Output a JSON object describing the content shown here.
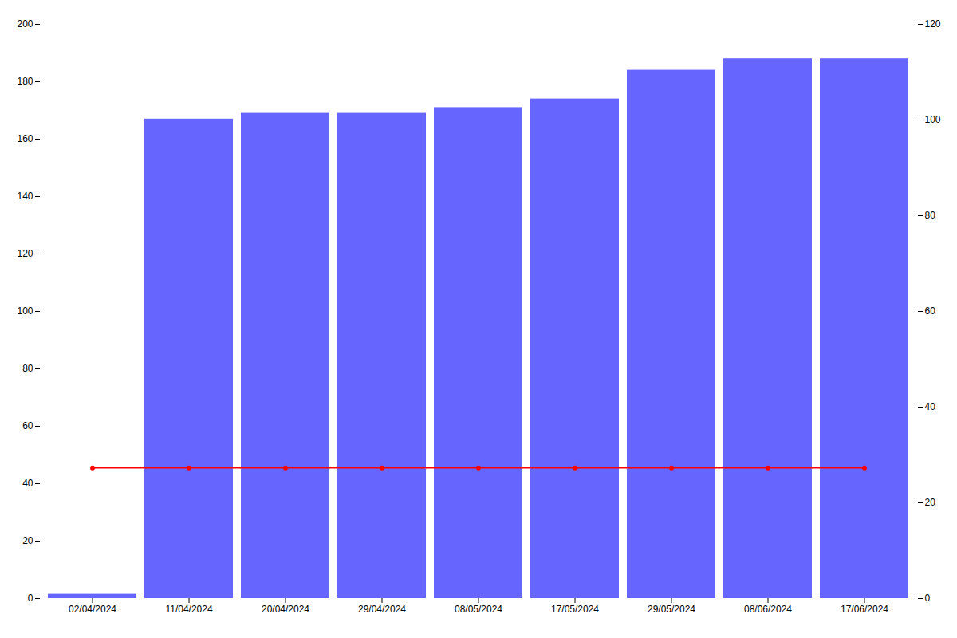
{
  "chart_data": {
    "type": "bar",
    "categories": [
      "02/04/2024",
      "11/04/2024",
      "20/04/2024",
      "29/04/2024",
      "08/05/2024",
      "17/05/2024",
      "29/05/2024",
      "08/06/2024",
      "17/06/2024"
    ],
    "series": [
      {
        "type": "bar",
        "color": "#6666ff",
        "values": [
          1.5,
          167,
          169,
          169,
          171,
          174,
          184,
          188,
          188
        ]
      },
      {
        "type": "line",
        "color": "#ff0000",
        "marker": "circle",
        "values": [
          45.5,
          45.5,
          45.5,
          45.5,
          45.5,
          45.5,
          45.5,
          45.5,
          45.5
        ]
      }
    ],
    "ylim": [
      0,
      200
    ],
    "yticks": [
      0,
      20,
      40,
      60,
      80,
      100,
      120,
      140,
      160,
      180,
      200
    ],
    "y2lim": [
      0,
      120
    ],
    "y2ticks": [
      0,
      20,
      40,
      60,
      80,
      100,
      120
    ]
  }
}
